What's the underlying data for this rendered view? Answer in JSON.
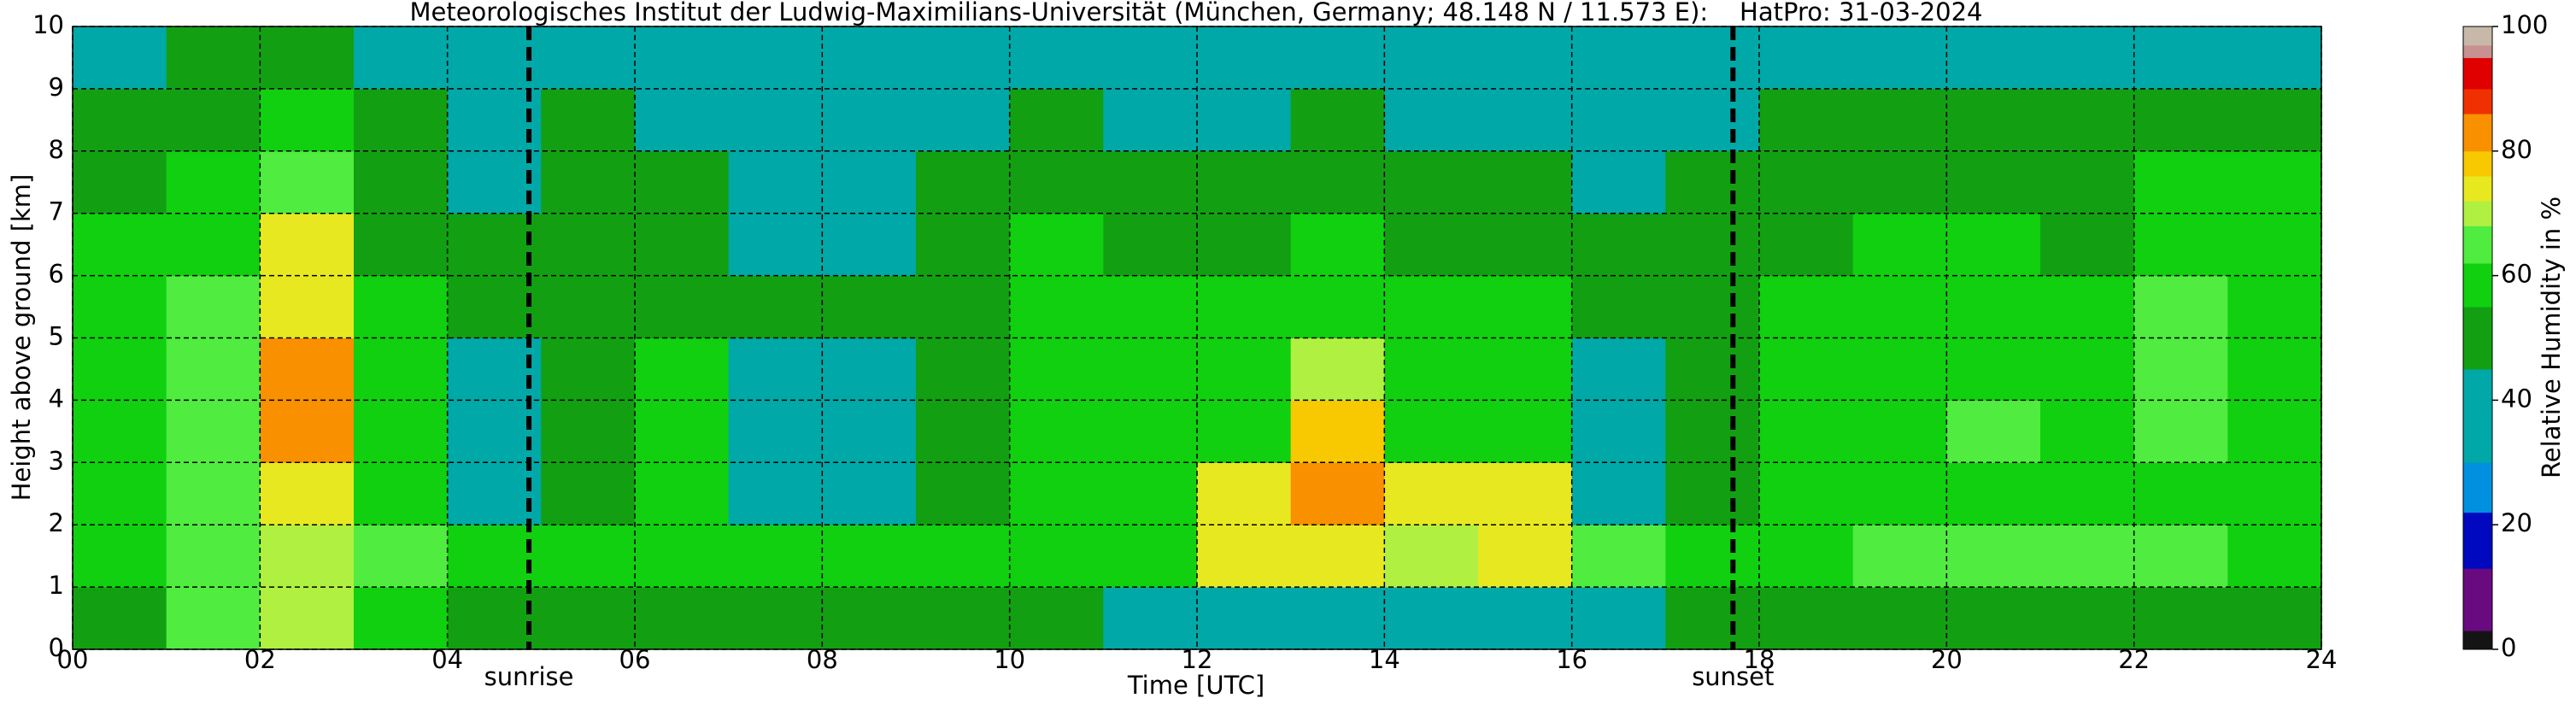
{
  "chart_data": {
    "type": "heatmap",
    "title": "Meteorologisches Institut der Ludwig-Maximilians-Universität (München, Germany; 48.148 N / 11.573 E):    HatPro: 31-03-2024",
    "xlabel": "Time [UTC]",
    "ylabel": "Height above ground [km]",
    "colorbar_label": "Relative Humidity in %",
    "xlim": [
      0,
      24
    ],
    "ylim": [
      0,
      10
    ],
    "xticks": [
      {
        "value": 0,
        "label": "00"
      },
      {
        "value": 2,
        "label": "02"
      },
      {
        "value": 4,
        "label": "04"
      },
      {
        "value": 6,
        "label": "06"
      },
      {
        "value": 8,
        "label": "08"
      },
      10,
      12,
      14,
      16,
      18,
      20,
      22,
      24
    ],
    "yticks": [
      0,
      1,
      2,
      3,
      4,
      5,
      6,
      7,
      8,
      9,
      10
    ],
    "grid": true,
    "x": [
      0.5,
      1.5,
      2.5,
      3.5,
      4.5,
      5.5,
      6.5,
      7.5,
      8.5,
      9.5,
      10.5,
      11.5,
      12.5,
      13.5,
      14.5,
      15.5,
      16.5,
      17.5,
      18.5,
      19.5,
      20.5,
      21.5,
      22.5,
      23.5
    ],
    "y": [
      0.5,
      1.5,
      2.5,
      3.5,
      4.5,
      5.5,
      6.5,
      7.5,
      8.5,
      9.5
    ],
    "z": [
      [
        50,
        62,
        68,
        55,
        50,
        50,
        52,
        52,
        50,
        50,
        48,
        42,
        42,
        42,
        42,
        42,
        42,
        45,
        45,
        45,
        45,
        45,
        45,
        50
      ],
      [
        60,
        64,
        70,
        62,
        60,
        58,
        60,
        55,
        55,
        58,
        55,
        58,
        72,
        74,
        70,
        72,
        62,
        60,
        60,
        62,
        62,
        62,
        62,
        60
      ],
      [
        58,
        66,
        74,
        58,
        40,
        50,
        55,
        32,
        30,
        52,
        55,
        55,
        72,
        80,
        74,
        72,
        40,
        48,
        58,
        60,
        60,
        58,
        60,
        58
      ],
      [
        57,
        66,
        82,
        56,
        36,
        50,
        55,
        32,
        32,
        52,
        55,
        55,
        58,
        76,
        60,
        58,
        42,
        48,
        56,
        60,
        62,
        58,
        62,
        60
      ],
      [
        56,
        62,
        80,
        56,
        42,
        52,
        55,
        40,
        40,
        52,
        55,
        55,
        58,
        70,
        58,
        56,
        42,
        48,
        55,
        60,
        60,
        55,
        62,
        60
      ],
      [
        55,
        62,
        75,
        55,
        45,
        52,
        52,
        45,
        45,
        52,
        55,
        55,
        56,
        60,
        56,
        56,
        45,
        50,
        55,
        58,
        60,
        55,
        62,
        60
      ],
      [
        55,
        60,
        72,
        52,
        45,
        50,
        48,
        42,
        42,
        50,
        55,
        50,
        52,
        55,
        52,
        52,
        45,
        48,
        52,
        55,
        58,
        52,
        60,
        58
      ],
      [
        52,
        58,
        62,
        48,
        40,
        48,
        45,
        40,
        38,
        45,
        48,
        45,
        45,
        50,
        45,
        45,
        42,
        45,
        50,
        50,
        50,
        48,
        55,
        55
      ],
      [
        50,
        52,
        55,
        45,
        40,
        45,
        42,
        38,
        38,
        42,
        45,
        40,
        40,
        45,
        42,
        42,
        42,
        42,
        48,
        50,
        48,
        46,
        50,
        52
      ],
      [
        42,
        45,
        45,
        40,
        36,
        40,
        38,
        36,
        34,
        38,
        40,
        36,
        34,
        38,
        36,
        36,
        36,
        38,
        40,
        40,
        42,
        40,
        42,
        42
      ]
    ],
    "colorscale": [
      {
        "value": 0,
        "color": "#141414"
      },
      {
        "value": 3,
        "color": "#6a0a80"
      },
      {
        "value": 13,
        "color": "#0008c0"
      },
      {
        "value": 22,
        "color": "#0090e0"
      },
      {
        "value": 30,
        "color": "#00a8a8"
      },
      {
        "value": 45,
        "color": "#12a012"
      },
      {
        "value": 55,
        "color": "#10d010"
      },
      {
        "value": 62,
        "color": "#50ec40"
      },
      {
        "value": 68,
        "color": "#b0f040"
      },
      {
        "value": 72,
        "color": "#e8e820"
      },
      {
        "value": 76,
        "color": "#f8c800"
      },
      {
        "value": 80,
        "color": "#f89000"
      },
      {
        "value": 86,
        "color": "#f03000"
      },
      {
        "value": 90,
        "color": "#e00000"
      },
      {
        "value": 95,
        "color": "#c89090"
      },
      {
        "value": 97,
        "color": "#c8b8a8"
      }
    ],
    "colorbar_lim": [
      0,
      100
    ],
    "colorbar_ticks": [
      0,
      20,
      40,
      60,
      80,
      100
    ],
    "annotations": [
      {
        "text": "sunrise",
        "x": 4.87
      },
      {
        "text": "sunset",
        "x": 17.72
      }
    ]
  }
}
